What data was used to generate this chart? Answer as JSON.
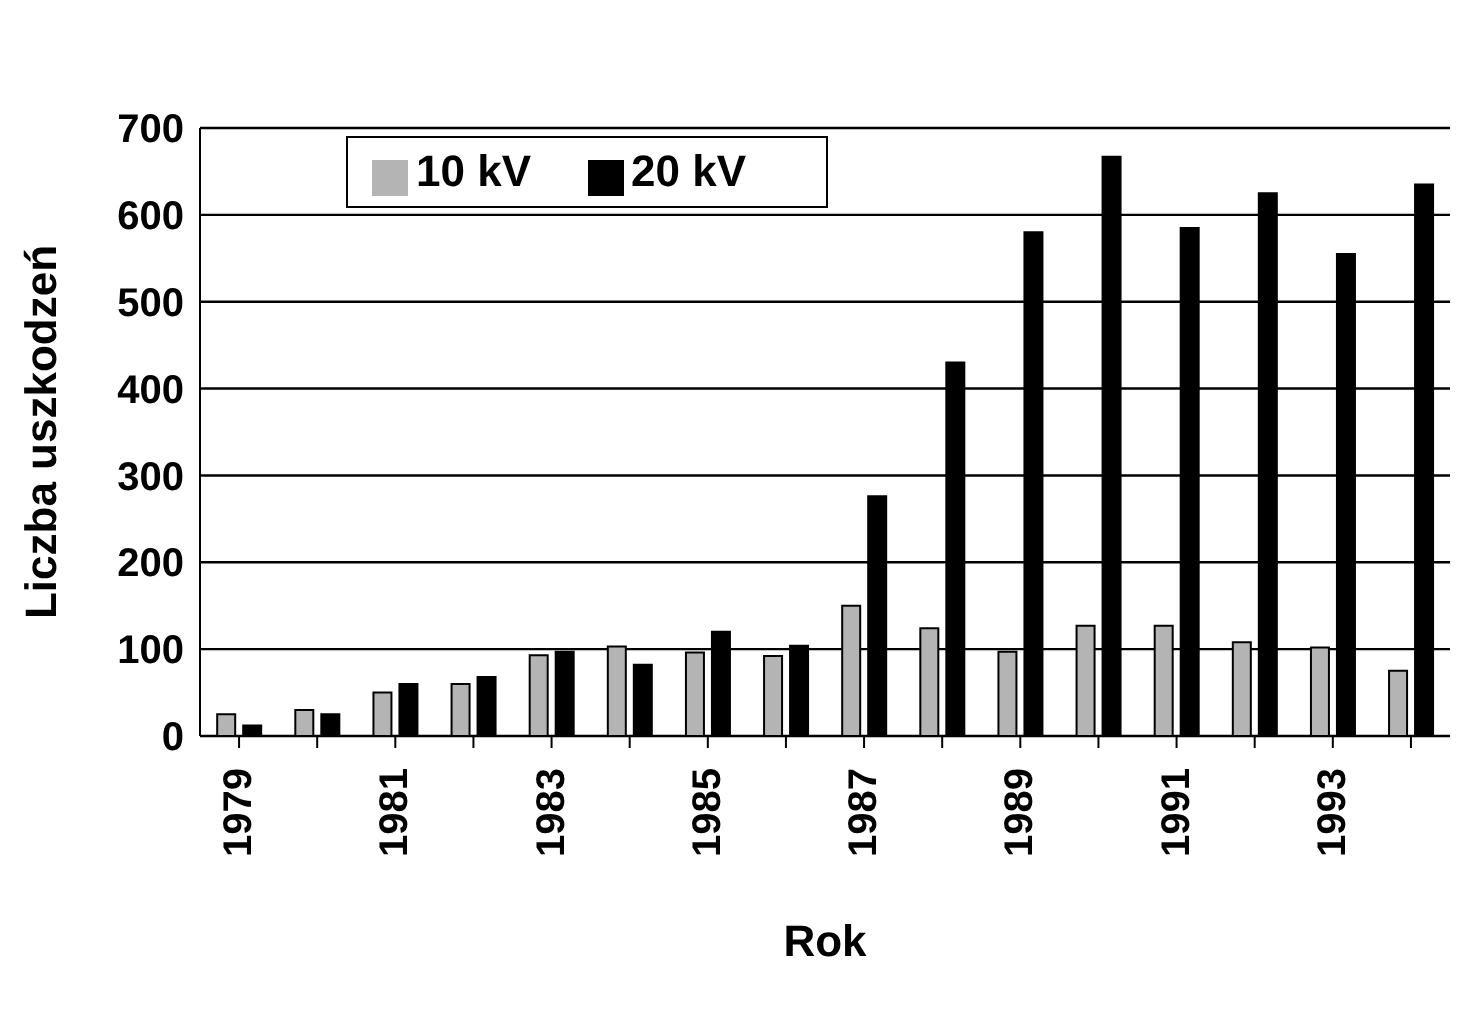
{
  "chart_data": {
    "type": "bar",
    "xlabel": "Rok",
    "ylabel": "Liczba uszkodzeń",
    "categories": [
      "1979",
      null,
      "1981",
      null,
      "1983",
      null,
      "1985",
      null,
      "1987",
      null,
      "1989",
      null,
      "1991",
      null,
      "1993",
      null
    ],
    "series": [
      {
        "name": "10 kV",
        "color": "#b4b4b4",
        "values": [
          25,
          30,
          50,
          60,
          93,
          103,
          96,
          92,
          150,
          124,
          97,
          127,
          127,
          108,
          102,
          75
        ]
      },
      {
        "name": "20 kV",
        "color": "#000000",
        "values": [
          12,
          25,
          60,
          68,
          97,
          82,
          120,
          104,
          276,
          430,
          580,
          667,
          585,
          625,
          555,
          635
        ]
      }
    ],
    "ylim": [
      0,
      700
    ],
    "yticks": [
      0,
      100,
      200,
      300,
      400,
      500,
      600,
      700
    ],
    "grid": "y",
    "legend": "top left"
  }
}
